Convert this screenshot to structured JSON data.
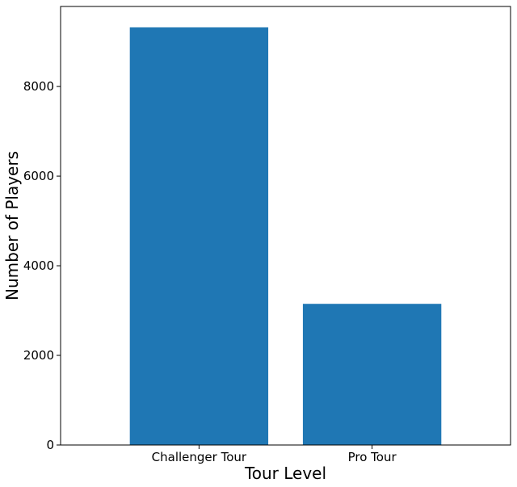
{
  "chart_data": {
    "type": "bar",
    "categories": [
      "Challenger Tour",
      "Pro Tour"
    ],
    "values": [
      9320,
      3150
    ],
    "title": "",
    "xlabel": "Tour Level",
    "ylabel": "Number of Players",
    "ylim": [
      0,
      9786
    ],
    "yticks": [
      0,
      2000,
      4000,
      6000,
      8000
    ],
    "ytick_labels": [
      "0",
      "2000",
      "4000",
      "6000",
      "8000"
    ],
    "grid": false,
    "bar_color": "#1f77b4"
  }
}
